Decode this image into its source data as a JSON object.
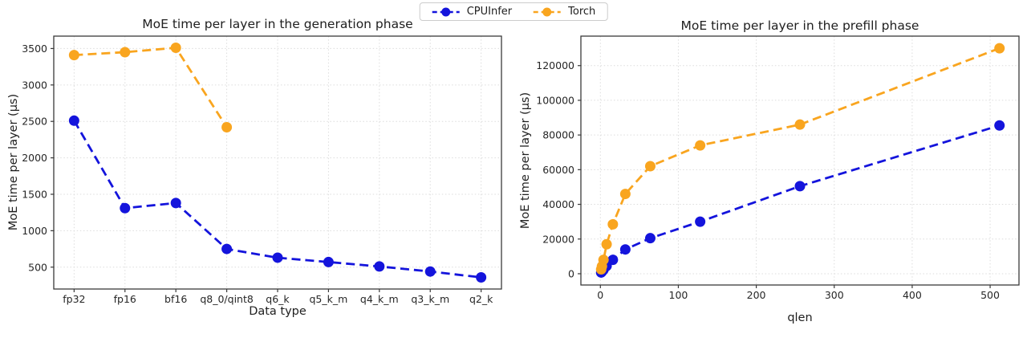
{
  "legend": {
    "position": "top-center",
    "items": [
      {
        "label": "CPUInfer",
        "color": "#1414dc",
        "glyph": "dashed-line-circle-marker-icon"
      },
      {
        "label": "Torch",
        "color": "#f9a51f",
        "glyph": "dashed-line-circle-marker-icon"
      }
    ]
  },
  "chart_data": [
    {
      "type": "line",
      "title": "MoE time per layer in the generation phase",
      "xlabel": "Data type",
      "ylabel": "MoE time per layer (µs)",
      "linestyle": "dashed",
      "marker": "o",
      "grid": true,
      "categories": [
        "fp32",
        "fp16",
        "bf16",
        "q8_0/qint8",
        "q6_k",
        "q5_k_m",
        "q4_k_m",
        "q3_k_m",
        "q2_k"
      ],
      "xlim": [
        -0.4,
        8.4
      ],
      "ylim": [
        200,
        3670
      ],
      "yticks": [
        500,
        1000,
        1500,
        2000,
        2500,
        3000,
        3500
      ],
      "series": [
        {
          "name": "CPUInfer",
          "color": "#1414dc",
          "values": [
            2510,
            1310,
            1380,
            750,
            630,
            570,
            510,
            440,
            360
          ]
        },
        {
          "name": "Torch",
          "color": "#f9a51f",
          "values": [
            3410,
            3450,
            3510,
            2420,
            null,
            null,
            null,
            null,
            null
          ]
        }
      ]
    },
    {
      "type": "line",
      "title": "MoE time per layer in the prefill phase",
      "xlabel": "qlen",
      "ylabel": "MoE time per layer (µs)",
      "linestyle": "dashed",
      "marker": "o",
      "grid": true,
      "x": [
        1,
        2,
        4,
        8,
        16,
        32,
        64,
        128,
        256,
        512
      ],
      "xlim": [
        -25,
        537
      ],
      "xticks": [
        0,
        100,
        200,
        300,
        400,
        500
      ],
      "ylim": [
        -6500,
        137000
      ],
      "yticks": [
        0,
        20000,
        40000,
        60000,
        80000,
        100000,
        120000
      ],
      "series": [
        {
          "name": "CPUInfer",
          "color": "#1414dc",
          "values": [
            700,
            1200,
            2300,
            4500,
            8000,
            14000,
            20500,
            30000,
            50500,
            85500
          ]
        },
        {
          "name": "Torch",
          "color": "#f9a51f",
          "values": [
            2500,
            4300,
            8000,
            17000,
            28500,
            46000,
            62000,
            74000,
            86000,
            130000
          ]
        }
      ]
    }
  ]
}
